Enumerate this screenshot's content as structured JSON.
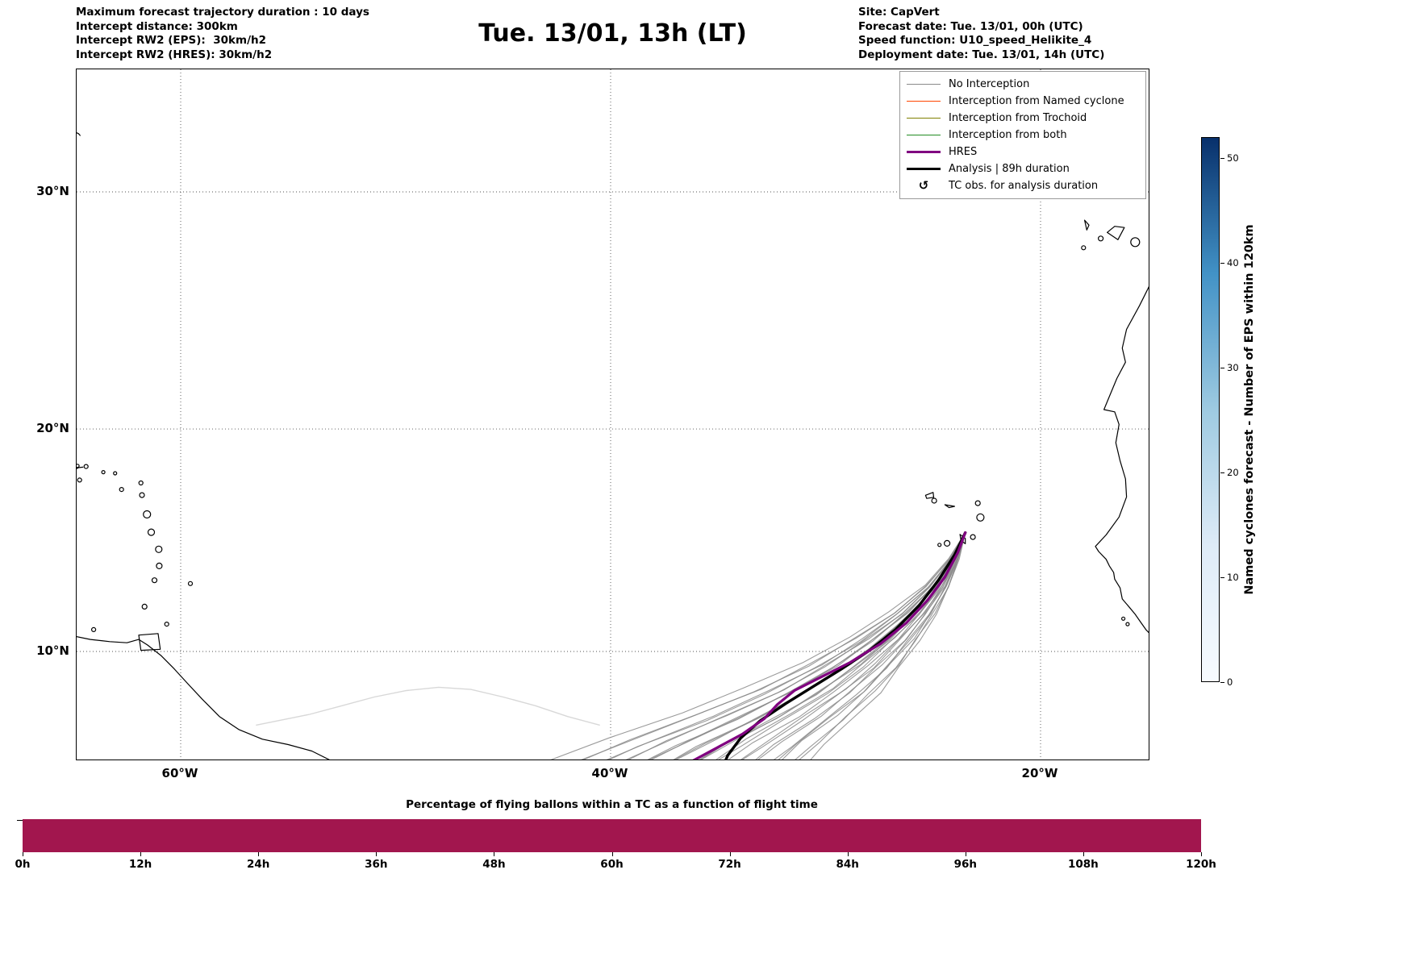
{
  "header": {
    "left": {
      "line1": "Maximum forecast trajectory duration : 10 days",
      "line2": "Intercept distance: 300km",
      "line3": "Intercept RW2 (EPS):  30km/h2",
      "line4": "Intercept RW2 (HRES): 30km/h2"
    },
    "title": "Tue. 13/01, 13h (LT)",
    "right": {
      "line1": "Site: CapVert",
      "line2": "Forecast date: Tue. 13/01, 00h (UTC)",
      "line3": "Speed function: U10_speed_Helikite_4",
      "line4": "Deployment date: Tue. 13/01, 14h (UTC)"
    }
  },
  "map_axes": {
    "lat_ticks": [
      {
        "label": "30°N",
        "value": 30
      },
      {
        "label": "20°N",
        "value": 20
      },
      {
        "label": "10°N",
        "value": 10
      }
    ],
    "lon_ticks": [
      {
        "label": "60°W",
        "value": -60
      },
      {
        "label": "40°W",
        "value": -40
      },
      {
        "label": "20°W",
        "value": -20
      }
    ]
  },
  "legend": {
    "items": [
      {
        "label": "No Interception",
        "type": "line",
        "color": "#8a8a8a",
        "lw": 1.5
      },
      {
        "label": "Interception from Named cyclone",
        "type": "line",
        "color": "#ff4500",
        "lw": 1.5
      },
      {
        "label": "Interception from Trochoid",
        "type": "line",
        "color": "#808000",
        "lw": 1.5
      },
      {
        "label": "Interception from both",
        "type": "line",
        "color": "#228b22",
        "lw": 1.5
      },
      {
        "label": "HRES",
        "type": "line",
        "color": "#800080",
        "lw": 3.5
      },
      {
        "label": "Analysis | 89h duration",
        "type": "line",
        "color": "#000000",
        "lw": 3.5
      },
      {
        "label": "TC obs. for analysis duration",
        "type": "symbol",
        "symbol": "↺",
        "color": "#000000"
      }
    ]
  },
  "colorbar": {
    "label": "Named cyclones forecast - Number of EPS within 120km",
    "ticks": [
      0,
      10,
      20,
      30,
      40,
      50
    ],
    "vmax": 52,
    "stops": [
      "#f7fbff",
      "#deebf7",
      "#9ecae1",
      "#4292c6",
      "#08306b"
    ]
  },
  "chart_data": [
    {
      "type": "line",
      "title": "Tue. 13/01, 13h (LT)",
      "projection": "mercator",
      "lon_range": [
        -64.9,
        -15.0
      ],
      "lat_range": [
        4.9,
        34.8
      ],
      "lon_gridlines": [
        -60,
        -40,
        -20
      ],
      "lat_gridlines": [
        10,
        20,
        30
      ],
      "grid": "dotted",
      "start_point": [
        -23.5,
        15.4
      ],
      "ensemble": {
        "name": "No Interception (EPS members)",
        "color": "#8a8a8a",
        "start_lon": -23.5,
        "lat_profile": [
          15.4,
          14.2,
          12.95,
          11.7,
          10.5,
          9.3,
          8.1,
          6.9,
          5.7,
          4.55
        ],
        "lon_offsets": [
          0,
          0.5,
          1.25,
          2.3,
          3.55,
          5.0,
          6.7,
          8.7,
          10.9,
          12.8
        ],
        "members": [
          [
            0.6,
            0.0
          ],
          [
            0.63,
            0.12
          ],
          [
            0.66,
            -0.08
          ],
          [
            0.69,
            0.2
          ],
          [
            0.72,
            0.05
          ],
          [
            0.75,
            -0.12
          ],
          [
            0.78,
            0.15
          ],
          [
            0.81,
            0.0
          ],
          [
            0.84,
            0.25
          ],
          [
            0.87,
            -0.1
          ],
          [
            0.9,
            0.1
          ],
          [
            0.93,
            0.3
          ],
          [
            0.96,
            -0.05
          ],
          [
            0.99,
            0.18
          ],
          [
            1.02,
            0.0
          ],
          [
            1.05,
            -0.15
          ],
          [
            1.08,
            0.22
          ],
          [
            1.11,
            0.05
          ],
          [
            1.14,
            -0.1
          ],
          [
            1.17,
            0.28
          ],
          [
            1.2,
            0.1
          ],
          [
            1.23,
            -0.05
          ],
          [
            1.27,
            0.2
          ],
          [
            1.31,
            0.0
          ],
          [
            1.35,
            0.15
          ],
          [
            1.39,
            -0.1
          ],
          [
            1.43,
            0.25
          ],
          [
            1.47,
            0.05
          ],
          [
            1.52,
            0.35
          ]
        ]
      },
      "faint_lines": {
        "color": "#d8d8d8",
        "lines": [
          [
            [
              -40.5,
              6.6
            ],
            [
              -42,
              7.0
            ],
            [
              -43.5,
              7.5
            ],
            [
              -45,
              7.9
            ],
            [
              -46.5,
              8.25
            ],
            [
              -48,
              8.35
            ],
            [
              -49.5,
              8.2
            ],
            [
              -51,
              7.9
            ],
            [
              -52.5,
              7.5
            ],
            [
              -54,
              7.1
            ],
            [
              -55.5,
              6.8
            ],
            [
              -56.5,
              6.6
            ]
          ],
          [
            [
              -41,
              4.6
            ],
            [
              -43,
              4.85
            ],
            [
              -45,
              4.9
            ],
            [
              -46.5,
              4.75
            ],
            [
              -48,
              4.5
            ]
          ]
        ]
      },
      "hres": {
        "name": "HRES",
        "color": "#800080",
        "points": [
          [
            -23.5,
            15.4
          ],
          [
            -23.85,
            14.5
          ],
          [
            -24.45,
            13.4
          ],
          [
            -25.25,
            12.35
          ],
          [
            -26.25,
            11.3
          ],
          [
            -27.45,
            10.35
          ],
          [
            -28.85,
            9.5
          ],
          [
            -30.25,
            8.8
          ],
          [
            -31.45,
            8.2
          ],
          [
            -32.25,
            7.55
          ],
          [
            -32.85,
            6.9
          ],
          [
            -33.85,
            6.2
          ],
          [
            -35.15,
            5.5
          ],
          [
            -36.45,
            4.8
          ],
          [
            -37.15,
            4.4
          ]
        ]
      },
      "analysis": {
        "name": "Analysis | 89h duration",
        "color": "#000000",
        "points": [
          [
            -23.5,
            15.4
          ],
          [
            -24.0,
            14.4
          ],
          [
            -24.75,
            13.25
          ],
          [
            -25.65,
            12.1
          ],
          [
            -26.75,
            11.0
          ],
          [
            -27.95,
            10.05
          ],
          [
            -29.25,
            9.2
          ],
          [
            -30.55,
            8.4
          ],
          [
            -31.85,
            7.6
          ],
          [
            -33.05,
            6.8
          ],
          [
            -33.95,
            6.0
          ],
          [
            -34.55,
            5.2
          ],
          [
            -34.85,
            4.5
          ]
        ]
      },
      "coastlines": [
        [
          [
            -64.95,
            10.7
          ],
          [
            -64.2,
            10.55
          ],
          [
            -63.3,
            10.45
          ],
          [
            -62.5,
            10.4
          ],
          [
            -61.95,
            10.55
          ],
          [
            -61.55,
            10.3
          ],
          [
            -60.9,
            9.8
          ],
          [
            -60.3,
            9.2
          ],
          [
            -59.7,
            8.55
          ],
          [
            -59.0,
            7.8
          ],
          [
            -58.2,
            7.0
          ],
          [
            -57.3,
            6.4
          ],
          [
            -56.2,
            5.95
          ],
          [
            -55.0,
            5.7
          ],
          [
            -53.9,
            5.4
          ],
          [
            -53.0,
            4.95
          ],
          [
            -52.4,
            4.4
          ],
          [
            -52.1,
            4.1
          ]
        ],
        [
          [
            -14.9,
            26.2
          ],
          [
            -15.4,
            25.3
          ],
          [
            -16.0,
            24.3
          ],
          [
            -16.2,
            23.5
          ],
          [
            -16.05,
            22.9
          ],
          [
            -16.45,
            22.2
          ],
          [
            -16.85,
            21.3
          ],
          [
            -17.05,
            20.85
          ],
          [
            -16.55,
            20.75
          ],
          [
            -16.35,
            20.2
          ],
          [
            -16.5,
            19.4
          ],
          [
            -16.3,
            18.6
          ],
          [
            -16.05,
            17.8
          ],
          [
            -16.0,
            17.0
          ],
          [
            -16.35,
            16.1
          ],
          [
            -16.95,
            15.3
          ],
          [
            -17.45,
            14.78
          ],
          [
            -17.3,
            14.55
          ],
          [
            -16.95,
            14.2
          ],
          [
            -16.8,
            13.9
          ],
          [
            -16.6,
            13.6
          ],
          [
            -16.55,
            13.3
          ],
          [
            -16.3,
            12.9
          ],
          [
            -16.2,
            12.4
          ],
          [
            -15.85,
            12.0
          ],
          [
            -15.6,
            11.7
          ],
          [
            -15.35,
            11.35
          ],
          [
            -15.1,
            11.0
          ],
          [
            -14.9,
            10.8
          ]
        ],
        [
          [
            -64.95,
            32.4
          ],
          [
            -64.75,
            32.32
          ],
          [
            -64.68,
            32.25
          ]
        ],
        [
          [
            -64.95,
            18.2
          ],
          [
            -64.75,
            18.3
          ],
          [
            -64.55,
            18.32
          ]
        ]
      ],
      "island_polys": [
        [
          [
            -61.95,
            10.75
          ],
          [
            -61.05,
            10.82
          ],
          [
            -60.95,
            10.1
          ],
          [
            -61.85,
            10.05
          ],
          [
            -61.95,
            10.75
          ]
        ],
        [
          [
            -25.35,
            17.07
          ],
          [
            -25.0,
            17.2
          ],
          [
            -24.97,
            16.98
          ],
          [
            -25.3,
            16.93
          ],
          [
            -25.35,
            17.07
          ]
        ],
        [
          [
            -24.45,
            16.65
          ],
          [
            -24.0,
            16.58
          ],
          [
            -24.25,
            16.52
          ],
          [
            -24.45,
            16.65
          ]
        ],
        [
          [
            -23.75,
            15.32
          ],
          [
            -23.5,
            15.14
          ],
          [
            -23.5,
            14.9
          ],
          [
            -23.7,
            15.05
          ],
          [
            -23.75,
            15.32
          ]
        ],
        [
          [
            -17.95,
            28.85
          ],
          [
            -17.75,
            28.65
          ],
          [
            -17.85,
            28.45
          ],
          [
            -17.95,
            28.85
          ]
        ],
        [
          [
            -16.9,
            28.35
          ],
          [
            -16.55,
            28.6
          ],
          [
            -16.1,
            28.55
          ],
          [
            -16.4,
            28.05
          ],
          [
            -16.9,
            28.35
          ]
        ]
      ],
      "island_circles": [
        [
          -60.65,
          11.25,
          2.5
        ],
        [
          -64.05,
          11.0,
          2.5
        ],
        [
          -61.68,
          12.05,
          3
        ],
        [
          -61.22,
          13.25,
          3
        ],
        [
          -59.55,
          13.1,
          2.5
        ],
        [
          -61.0,
          13.9,
          3.5
        ],
        [
          -61.02,
          14.65,
          4
        ],
        [
          -61.37,
          15.42,
          4
        ],
        [
          -61.57,
          16.22,
          4.5
        ],
        [
          -61.8,
          17.08,
          3
        ],
        [
          -61.85,
          17.62,
          2.5
        ],
        [
          -62.75,
          17.33,
          2.5
        ],
        [
          -63.05,
          18.05,
          2
        ],
        [
          -63.6,
          18.1,
          2
        ],
        [
          -64.4,
          18.35,
          2.5
        ],
        [
          -64.8,
          18.38,
          2
        ],
        [
          -64.7,
          17.75,
          2.5
        ],
        [
          -24.95,
          16.83,
          3
        ],
        [
          -22.92,
          16.72,
          3
        ],
        [
          -22.8,
          16.08,
          4.5
        ],
        [
          -23.15,
          15.2,
          3
        ],
        [
          -24.35,
          14.92,
          3.5
        ],
        [
          -24.7,
          14.85,
          2
        ],
        [
          -18.0,
          27.72,
          2.5
        ],
        [
          -17.2,
          28.1,
          3
        ],
        [
          -15.6,
          27.95,
          5.5
        ],
        [
          -15.95,
          11.25,
          2
        ],
        [
          -16.15,
          11.5,
          2
        ]
      ]
    },
    {
      "type": "bar",
      "title": "Percentage of flying ballons within a TC as a function of flight time",
      "categories": [
        "0h",
        "12h",
        "24h",
        "36h",
        "48h",
        "60h",
        "72h",
        "84h",
        "96h",
        "108h",
        "120h"
      ],
      "values": [
        100,
        100,
        100,
        100,
        100,
        100,
        100,
        100,
        100,
        100
      ],
      "ylim": [
        0,
        100
      ],
      "bar_color": "#a2164e"
    }
  ]
}
